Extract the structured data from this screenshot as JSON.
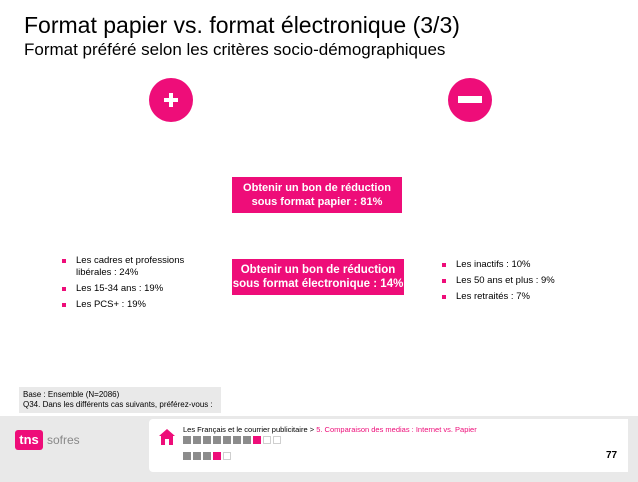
{
  "slide": {
    "title": "Format papier vs. format électronique (3/3)",
    "subtitle": "Format préféré selon les critères socio-démographiques"
  },
  "markers": {
    "plus": "plus-icon",
    "minus": "minus-icon",
    "color": "#ee0d79"
  },
  "boxes": {
    "paper": {
      "line1": "Obtenir un bon de réduction",
      "line2": "sous format papier : 81%"
    },
    "electronic": {
      "line1": "Obtenir un bon de réduction",
      "line2": "sous format électronique : 14%"
    }
  },
  "left_bullets": [
    "Les cadres et professions libérales : 24%",
    "Les 15-34 ans : 19%",
    "Les PCS+ : 19%"
  ],
  "right_bullets": [
    "Les inactifs : 10%",
    "Les 50 ans et plus : 9%",
    "Les retraités : 7%"
  ],
  "base_note": {
    "line1": "Base : Ensemble (N=2086)",
    "line2": "Q34. Dans les différents cas suivants, préférez-vous :"
  },
  "footer": {
    "logo_tns": "tns",
    "logo_sofres": "sofres",
    "breadcrumb_main": "Les Français et le courrier publicitaire",
    "breadcrumb_sep": ">",
    "breadcrumb_link": "5. Comparaison des medias : Internet vs. Papier",
    "nav_row1": [
      "gray",
      "gray",
      "gray",
      "gray",
      "gray",
      "gray",
      "gray",
      "pink",
      "white",
      "white"
    ],
    "nav_row2": [
      "gray",
      "gray",
      "gray",
      "pink",
      "white"
    ],
    "page_number": "77"
  }
}
